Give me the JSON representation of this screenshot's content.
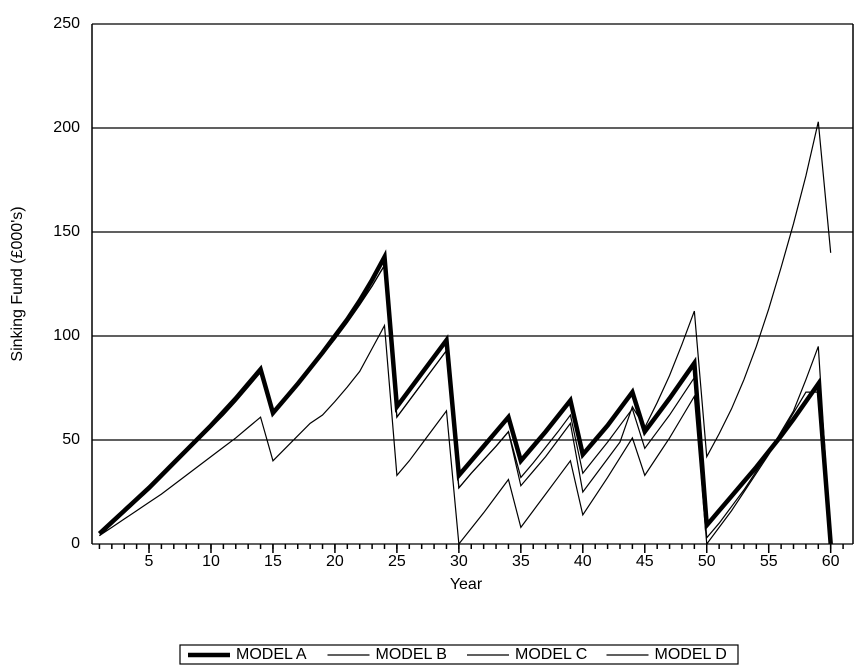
{
  "chart_data": {
    "type": "line",
    "x_label": "Year",
    "y_label": "Sinking Fund (£000's)",
    "x": [
      1,
      2,
      3,
      4,
      5,
      6,
      7,
      8,
      9,
      10,
      11,
      12,
      13,
      14,
      15,
      16,
      17,
      18,
      19,
      20,
      21,
      22,
      23,
      24,
      25,
      26,
      27,
      28,
      29,
      30,
      31,
      32,
      33,
      34,
      35,
      36,
      37,
      38,
      39,
      40,
      41,
      42,
      43,
      44,
      45,
      46,
      47,
      48,
      49,
      50,
      51,
      52,
      53,
      54,
      55,
      56,
      57,
      58,
      59,
      60
    ],
    "series": [
      {
        "name": "MODEL A",
        "color": "#000000",
        "width": 4.5,
        "values": [
          5,
          10.5,
          16,
          21.5,
          27,
          33,
          39,
          45,
          51,
          57,
          63.5,
          70,
          77,
          84,
          63,
          70,
          77,
          84.5,
          92,
          100,
          108,
          117,
          127,
          138,
          66,
          74,
          82,
          90,
          98,
          33,
          40,
          47,
          54,
          61,
          40,
          47,
          54,
          61.5,
          69,
          43,
          50,
          57,
          65,
          73,
          54,
          62,
          70,
          78.5,
          87,
          9,
          16,
          23,
          30,
          37,
          44.5,
          52,
          60,
          68.5,
          77,
          0
        ]
      },
      {
        "name": "MODEL B",
        "color": "#000000",
        "width": 1.2,
        "values": [
          4,
          8,
          12,
          16,
          20,
          24,
          28.5,
          33,
          37.5,
          42,
          46.5,
          51,
          56,
          61,
          40,
          46,
          52,
          58,
          62,
          68.5,
          75.5,
          83,
          94,
          105,
          33,
          40,
          48,
          56,
          64,
          0,
          7.5,
          15,
          23,
          31,
          8,
          16,
          24,
          32,
          40,
          14,
          23,
          32,
          41.5,
          51,
          33,
          42,
          51,
          61,
          71,
          0,
          8,
          16,
          25,
          34,
          43,
          53,
          63,
          73,
          73,
          0
        ]
      },
      {
        "name": "MODEL C",
        "color": "#000000",
        "width": 1.2,
        "values": [
          4,
          9.5,
          15,
          20.5,
          26,
          32,
          38,
          44,
          50,
          56,
          62,
          68.5,
          75.5,
          82.5,
          62,
          69,
          76,
          83.5,
          91,
          98.5,
          106.5,
          115,
          124,
          134,
          61,
          69,
          77,
          85,
          93,
          27,
          34,
          40.5,
          47,
          54,
          32,
          39,
          46.5,
          54,
          62,
          34,
          41.5,
          49,
          57,
          65,
          46,
          54,
          62,
          71,
          80,
          3,
          10,
          18,
          26,
          35,
          44,
          54,
          64,
          79,
          95,
          2
        ]
      },
      {
        "name": "MODEL D",
        "color": "#000000",
        "width": 1.2,
        "values": [
          4,
          9.5,
          15,
          20.5,
          26,
          32,
          38,
          44,
          50,
          56,
          62,
          68.5,
          75.5,
          82.5,
          62,
          69,
          76,
          83.5,
          91,
          98.5,
          106.5,
          115,
          124,
          134,
          61,
          69,
          77,
          85,
          93,
          27,
          34,
          40.5,
          47,
          54,
          28,
          35,
          42,
          50,
          58,
          25,
          33,
          41,
          49,
          66,
          56,
          68,
          81,
          96,
          112,
          42,
          53,
          65,
          79,
          95,
          113,
          133,
          154,
          177,
          203,
          140
        ]
      }
    ],
    "xlim": [
      0.4,
      61.8
    ],
    "xticks": [
      5,
      10,
      15,
      20,
      25,
      30,
      35,
      40,
      45,
      50,
      55,
      60
    ],
    "ylim": [
      0,
      250
    ],
    "yticks": [
      0,
      50,
      100,
      150,
      200,
      250
    ],
    "grid": true,
    "legend": "bottom"
  }
}
